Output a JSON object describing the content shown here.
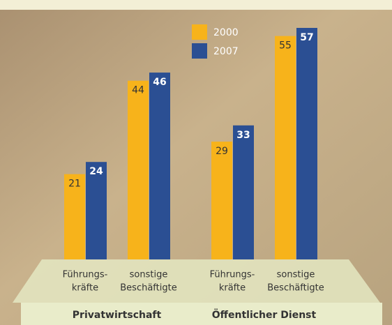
{
  "chart_data": {
    "type": "bar",
    "categories": [
      [
        "Führungs-",
        "kräfte"
      ],
      [
        "sonstige",
        "Beschäftigte"
      ],
      [
        "Führungs-",
        "kräfte"
      ],
      [
        "sonstige",
        "Beschäftigte"
      ]
    ],
    "groups": [
      "Privatwirtschaft",
      "Öffentlicher Dienst"
    ],
    "series": [
      {
        "name": "2000",
        "color": "#f7b31b",
        "values": [
          21,
          44,
          29,
          55
        ]
      },
      {
        "name": "2007",
        "color": "#2b4f93",
        "values": [
          24,
          46,
          33,
          57
        ]
      }
    ]
  }
}
